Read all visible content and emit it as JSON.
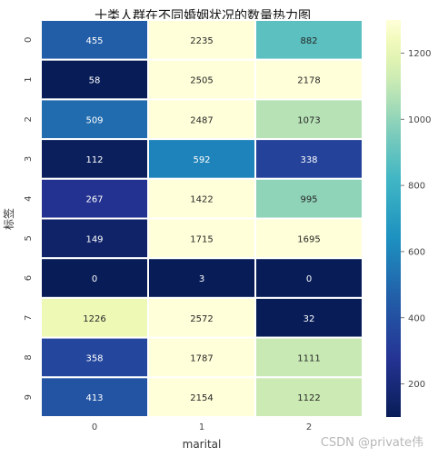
{
  "chart_data": {
    "type": "heatmap",
    "title": "十类人群在不同婚姻状况的数量热力图",
    "xlabel": "marital",
    "ylabel": "标签",
    "x_categories": [
      "0",
      "1",
      "2"
    ],
    "y_categories": [
      "0",
      "1",
      "2",
      "3",
      "4",
      "5",
      "6",
      "7",
      "8",
      "9"
    ],
    "values": [
      [
        455,
        2235,
        882
      ],
      [
        58,
        2505,
        2178
      ],
      [
        509,
        2487,
        1073
      ],
      [
        112,
        592,
        338
      ],
      [
        267,
        1422,
        995
      ],
      [
        149,
        1715,
        1695
      ],
      [
        0,
        3,
        0
      ],
      [
        1226,
        2572,
        32
      ],
      [
        358,
        1787,
        1111
      ],
      [
        413,
        2154,
        1122
      ]
    ],
    "colormap": "YlGnBu",
    "color_range": [
      100,
      1300
    ],
    "colorbar_ticks": [
      200,
      400,
      600,
      800,
      1000,
      1200
    ],
    "annotate": true,
    "grid": false
  },
  "watermark": "CSDN @private伟"
}
